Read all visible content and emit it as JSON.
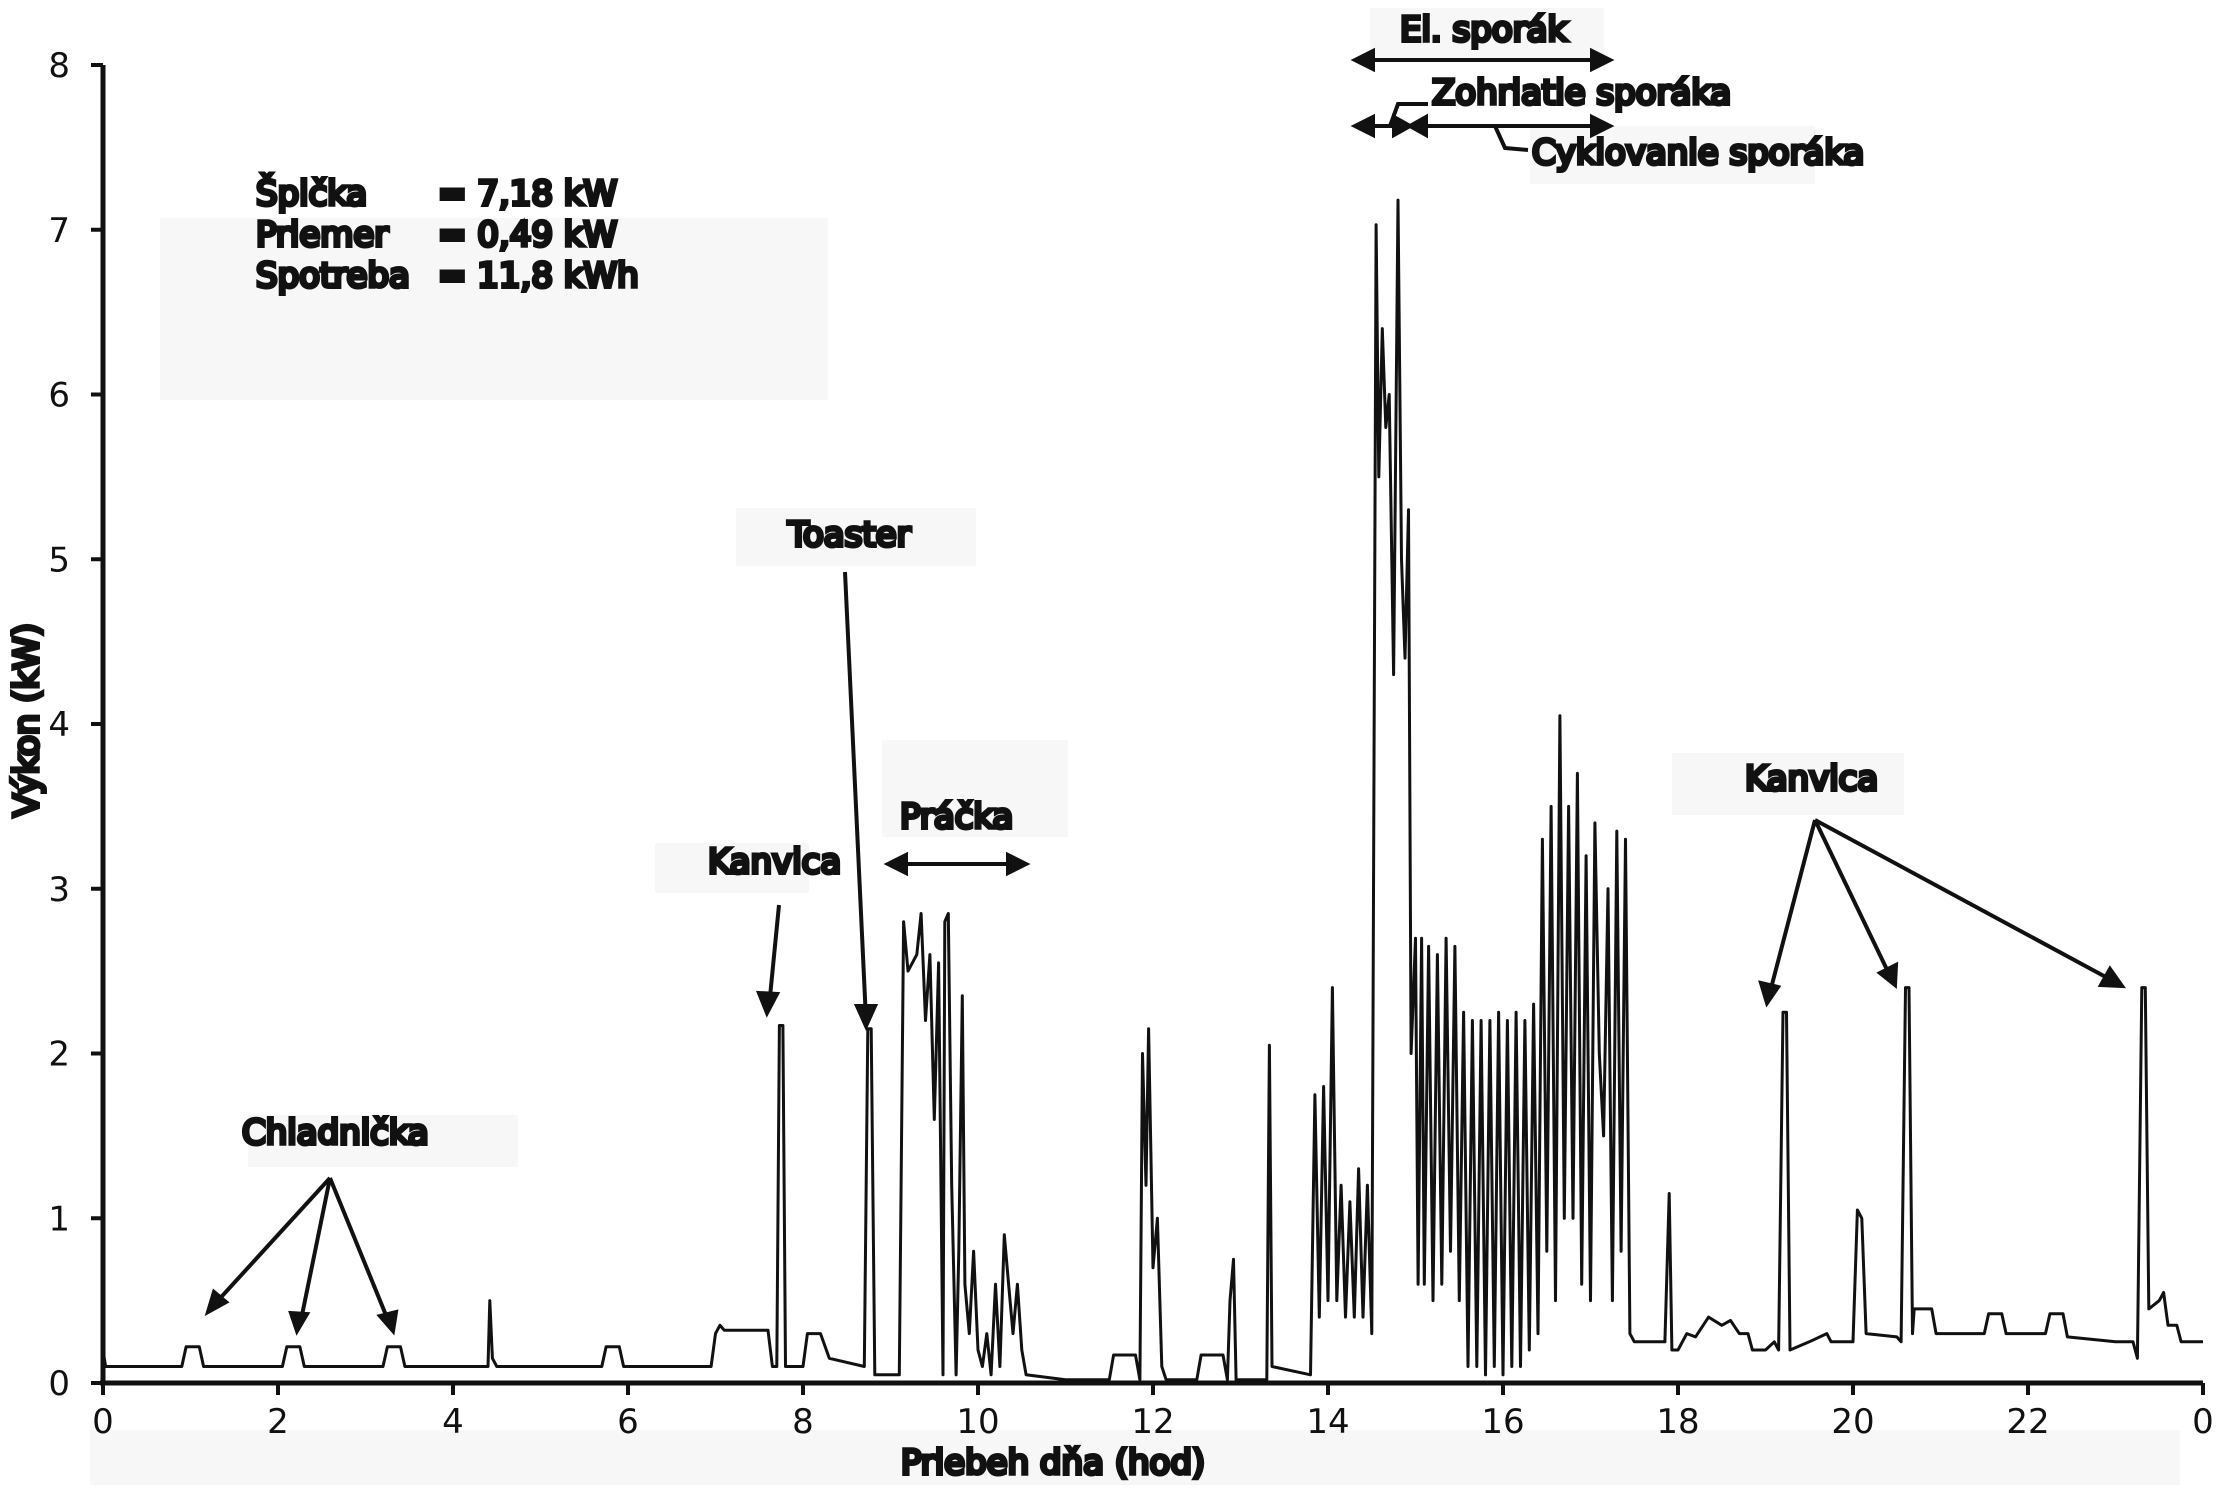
{
  "chart_data": {
    "type": "line",
    "xlabel": "Priebeh dňa (hod)",
    "ylabel": "Výkon (kW)",
    "xlim": [
      0,
      24
    ],
    "ylim": [
      0,
      8
    ],
    "x_tick_labels": [
      "0",
      "2",
      "4",
      "6",
      "8",
      "10",
      "12",
      "14",
      "16",
      "18",
      "20",
      "22",
      "0"
    ],
    "y_tick_labels": [
      "0",
      "1",
      "2",
      "3",
      "4",
      "5",
      "6",
      "7",
      "8"
    ],
    "stats": [
      {
        "label": "Špička",
        "value": "= 7,18 kW"
      },
      {
        "label": "Priemer",
        "value": "= 0,49 kW"
      },
      {
        "label": "Spotreba",
        "value": "= 11,8 kWh"
      }
    ],
    "annotations": [
      {
        "text": "Chladnička"
      },
      {
        "text": "Kanvica"
      },
      {
        "text": "Toaster"
      },
      {
        "text": "Práčka"
      },
      {
        "text": "El. sporák"
      },
      {
        "text": "Zohriatie sporáka"
      },
      {
        "text": "Cyklovanie sporáka"
      },
      {
        "text": "Kanvica"
      }
    ],
    "series": [
      {
        "color": "#111111",
        "points": [
          [
            0.0,
            0.2
          ],
          [
            0.03,
            0.1
          ],
          [
            0.9,
            0.1
          ],
          [
            0.95,
            0.22
          ],
          [
            1.1,
            0.22
          ],
          [
            1.15,
            0.1
          ],
          [
            2.05,
            0.1
          ],
          [
            2.1,
            0.22
          ],
          [
            2.25,
            0.22
          ],
          [
            2.3,
            0.1
          ],
          [
            3.2,
            0.1
          ],
          [
            3.25,
            0.22
          ],
          [
            3.4,
            0.22
          ],
          [
            3.45,
            0.1
          ],
          [
            4.4,
            0.1
          ],
          [
            4.42,
            0.5
          ],
          [
            4.45,
            0.15
          ],
          [
            4.5,
            0.1
          ],
          [
            5.7,
            0.1
          ],
          [
            5.75,
            0.22
          ],
          [
            5.9,
            0.22
          ],
          [
            5.95,
            0.1
          ],
          [
            6.95,
            0.1
          ],
          [
            7.0,
            0.3
          ],
          [
            7.05,
            0.35
          ],
          [
            7.1,
            0.32
          ],
          [
            7.6,
            0.32
          ],
          [
            7.65,
            0.1
          ],
          [
            7.7,
            0.1
          ],
          [
            7.73,
            2.17
          ],
          [
            7.77,
            2.17
          ],
          [
            7.8,
            0.1
          ],
          [
            8.0,
            0.1
          ],
          [
            8.05,
            0.3
          ],
          [
            8.2,
            0.3
          ],
          [
            8.3,
            0.15
          ],
          [
            8.7,
            0.1
          ],
          [
            8.74,
            2.15
          ],
          [
            8.78,
            2.15
          ],
          [
            8.82,
            0.05
          ],
          [
            9.1,
            0.05
          ],
          [
            9.15,
            2.8
          ],
          [
            9.2,
            2.5
          ],
          [
            9.3,
            2.6
          ],
          [
            9.35,
            2.85
          ],
          [
            9.4,
            2.2
          ],
          [
            9.45,
            2.6
          ],
          [
            9.5,
            1.6
          ],
          [
            9.55,
            2.55
          ],
          [
            9.6,
            0.05
          ],
          [
            9.62,
            2.8
          ],
          [
            9.66,
            2.85
          ],
          [
            9.7,
            1.2
          ],
          [
            9.75,
            0.05
          ],
          [
            9.78,
            0.8
          ],
          [
            9.82,
            2.35
          ],
          [
            9.85,
            0.6
          ],
          [
            9.9,
            0.3
          ],
          [
            9.95,
            0.8
          ],
          [
            10.0,
            0.2
          ],
          [
            10.05,
            0.1
          ],
          [
            10.1,
            0.3
          ],
          [
            10.15,
            0.05
          ],
          [
            10.2,
            0.6
          ],
          [
            10.25,
            0.1
          ],
          [
            10.3,
            0.9
          ],
          [
            10.35,
            0.6
          ],
          [
            10.4,
            0.3
          ],
          [
            10.45,
            0.6
          ],
          [
            10.5,
            0.2
          ],
          [
            10.55,
            0.05
          ],
          [
            11.0,
            0.02
          ],
          [
            11.5,
            0.02
          ],
          [
            11.55,
            0.17
          ],
          [
            11.8,
            0.17
          ],
          [
            11.85,
            0.02
          ],
          [
            11.88,
            2.0
          ],
          [
            11.92,
            1.2
          ],
          [
            11.95,
            2.15
          ],
          [
            12.0,
            0.7
          ],
          [
            12.05,
            1.0
          ],
          [
            12.1,
            0.1
          ],
          [
            12.15,
            0.02
          ],
          [
            12.5,
            0.02
          ],
          [
            12.55,
            0.17
          ],
          [
            12.8,
            0.17
          ],
          [
            12.85,
            0.02
          ],
          [
            12.88,
            0.5
          ],
          [
            12.92,
            0.75
          ],
          [
            12.95,
            0.02
          ],
          [
            13.3,
            0.02
          ],
          [
            13.33,
            2.05
          ],
          [
            13.36,
            0.1
          ],
          [
            13.8,
            0.05
          ],
          [
            13.85,
            1.75
          ],
          [
            13.9,
            0.4
          ],
          [
            13.95,
            1.8
          ],
          [
            14.0,
            0.5
          ],
          [
            14.05,
            2.4
          ],
          [
            14.1,
            0.5
          ],
          [
            14.15,
            1.2
          ],
          [
            14.2,
            0.4
          ],
          [
            14.25,
            1.1
          ],
          [
            14.3,
            0.4
          ],
          [
            14.35,
            1.3
          ],
          [
            14.4,
            0.4
          ],
          [
            14.45,
            1.2
          ],
          [
            14.5,
            0.3
          ],
          [
            14.55,
            7.03
          ],
          [
            14.58,
            5.5
          ],
          [
            14.62,
            6.4
          ],
          [
            14.66,
            5.8
          ],
          [
            14.7,
            6.0
          ],
          [
            14.75,
            4.3
          ],
          [
            14.8,
            7.18
          ],
          [
            14.84,
            5.0
          ],
          [
            14.88,
            4.4
          ],
          [
            14.92,
            5.3
          ],
          [
            14.95,
            2.0
          ],
          [
            15.0,
            2.7
          ],
          [
            15.03,
            0.6
          ],
          [
            15.07,
            2.7
          ],
          [
            15.1,
            0.6
          ],
          [
            15.15,
            2.65
          ],
          [
            15.2,
            0.5
          ],
          [
            15.25,
            2.6
          ],
          [
            15.3,
            0.6
          ],
          [
            15.35,
            2.7
          ],
          [
            15.4,
            0.8
          ],
          [
            15.45,
            2.65
          ],
          [
            15.5,
            0.5
          ],
          [
            15.55,
            2.25
          ],
          [
            15.6,
            0.1
          ],
          [
            15.65,
            2.2
          ],
          [
            15.7,
            0.1
          ],
          [
            15.75,
            2.2
          ],
          [
            15.8,
            0.05
          ],
          [
            15.85,
            2.2
          ],
          [
            15.9,
            0.1
          ],
          [
            15.95,
            2.25
          ],
          [
            16.0,
            0.05
          ],
          [
            16.05,
            2.2
          ],
          [
            16.1,
            0.1
          ],
          [
            16.15,
            2.25
          ],
          [
            16.2,
            0.1
          ],
          [
            16.25,
            2.2
          ],
          [
            16.3,
            0.2
          ],
          [
            16.35,
            2.3
          ],
          [
            16.4,
            0.3
          ],
          [
            16.45,
            3.3
          ],
          [
            16.5,
            0.8
          ],
          [
            16.55,
            3.5
          ],
          [
            16.6,
            0.5
          ],
          [
            16.65,
            4.05
          ],
          [
            16.7,
            1.0
          ],
          [
            16.75,
            3.5
          ],
          [
            16.8,
            1.0
          ],
          [
            16.85,
            3.7
          ],
          [
            16.9,
            0.6
          ],
          [
            16.95,
            3.2
          ],
          [
            17.0,
            0.5
          ],
          [
            17.05,
            3.4
          ],
          [
            17.1,
            2.0
          ],
          [
            17.15,
            1.5
          ],
          [
            17.2,
            3.0
          ],
          [
            17.25,
            0.5
          ],
          [
            17.3,
            3.35
          ],
          [
            17.35,
            0.8
          ],
          [
            17.4,
            3.3
          ],
          [
            17.45,
            0.3
          ],
          [
            17.5,
            0.25
          ],
          [
            17.85,
            0.25
          ],
          [
            17.9,
            1.15
          ],
          [
            17.93,
            0.2
          ],
          [
            18.0,
            0.2
          ],
          [
            18.1,
            0.3
          ],
          [
            18.2,
            0.28
          ],
          [
            18.35,
            0.4
          ],
          [
            18.5,
            0.35
          ],
          [
            18.6,
            0.38
          ],
          [
            18.7,
            0.3
          ],
          [
            18.8,
            0.3
          ],
          [
            18.85,
            0.2
          ],
          [
            19.0,
            0.2
          ],
          [
            19.1,
            0.25
          ],
          [
            19.15,
            0.2
          ],
          [
            19.2,
            2.25
          ],
          [
            19.24,
            2.25
          ],
          [
            19.28,
            0.2
          ],
          [
            19.5,
            0.25
          ],
          [
            19.7,
            0.3
          ],
          [
            19.75,
            0.25
          ],
          [
            20.0,
            0.25
          ],
          [
            20.05,
            1.05
          ],
          [
            20.1,
            1.0
          ],
          [
            20.15,
            0.3
          ],
          [
            20.5,
            0.28
          ],
          [
            20.55,
            0.25
          ],
          [
            20.6,
            2.4
          ],
          [
            20.64,
            2.4
          ],
          [
            20.68,
            0.3
          ],
          [
            20.7,
            0.45
          ],
          [
            20.9,
            0.45
          ],
          [
            20.95,
            0.3
          ],
          [
            21.5,
            0.3
          ],
          [
            21.55,
            0.42
          ],
          [
            21.7,
            0.42
          ],
          [
            21.75,
            0.3
          ],
          [
            22.2,
            0.3
          ],
          [
            22.25,
            0.42
          ],
          [
            22.4,
            0.42
          ],
          [
            22.45,
            0.28
          ],
          [
            23.0,
            0.25
          ],
          [
            23.2,
            0.25
          ],
          [
            23.25,
            0.15
          ],
          [
            23.3,
            2.4
          ],
          [
            23.34,
            2.4
          ],
          [
            23.38,
            0.45
          ],
          [
            23.5,
            0.5
          ],
          [
            23.55,
            0.55
          ],
          [
            23.6,
            0.35
          ],
          [
            23.7,
            0.35
          ],
          [
            23.75,
            0.25
          ],
          [
            24.0,
            0.25
          ]
        ]
      }
    ]
  }
}
